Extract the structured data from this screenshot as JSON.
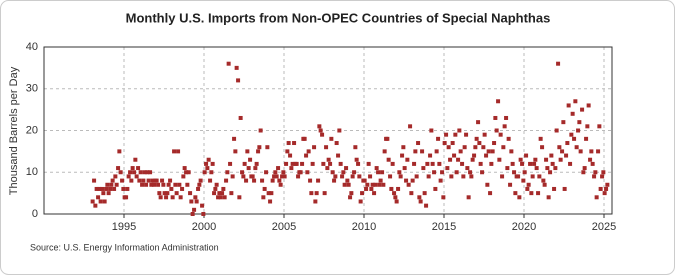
{
  "chart_data": {
    "type": "scatter",
    "title": "Monthly U.S. Imports from Non-OPEC Countries of Special Naphthas",
    "y_label": "Thousand Barrels per Day",
    "source": "Source: U.S. Energy Information Administration",
    "xlim": [
      1990,
      2025.5
    ],
    "xticks": [
      1995,
      2000,
      2005,
      2010,
      2015,
      2020,
      2025
    ],
    "ylim": [
      0,
      40
    ],
    "yticks": [
      0,
      10,
      20,
      30,
      40
    ],
    "grid": true,
    "series": [
      {
        "color": "#a52a2a",
        "x": [
          1993.04,
          1993.13,
          1993.21,
          1993.29,
          1993.38,
          1993.46,
          1993.54,
          1993.63,
          1993.71,
          1993.79,
          1993.88,
          1993.96,
          1994.04,
          1994.13,
          1994.21,
          1994.29,
          1994.38,
          1994.46,
          1994.54,
          1994.63,
          1994.71,
          1994.79,
          1994.88,
          1994.96,
          1995.04,
          1995.13,
          1995.21,
          1995.29,
          1995.38,
          1995.46,
          1995.54,
          1995.63,
          1995.71,
          1995.79,
          1995.88,
          1995.96,
          1996.04,
          1996.13,
          1996.21,
          1996.29,
          1996.38,
          1996.46,
          1996.54,
          1996.63,
          1996.71,
          1996.79,
          1996.88,
          1996.96,
          1997.04,
          1997.13,
          1997.21,
          1997.29,
          1997.38,
          1997.46,
          1997.54,
          1997.63,
          1997.71,
          1997.79,
          1997.88,
          1997.96,
          1998.04,
          1998.13,
          1998.21,
          1998.29,
          1998.38,
          1998.46,
          1998.54,
          1998.63,
          1998.71,
          1998.79,
          1998.88,
          1998.96,
          1999.04,
          1999.13,
          1999.21,
          1999.29,
          1999.38,
          1999.46,
          1999.54,
          1999.63,
          1999.71,
          1999.79,
          1999.88,
          1999.96,
          2000.04,
          2000.13,
          2000.21,
          2000.29,
          2000.38,
          2000.46,
          2000.54,
          2000.63,
          2000.71,
          2000.79,
          2000.88,
          2000.96,
          2001.04,
          2001.13,
          2001.21,
          2001.29,
          2001.38,
          2001.46,
          2001.54,
          2001.63,
          2001.71,
          2001.79,
          2001.88,
          2001.96,
          2002.04,
          2002.13,
          2002.21,
          2002.29,
          2002.38,
          2002.46,
          2002.54,
          2002.63,
          2002.71,
          2002.79,
          2002.88,
          2002.96,
          2003.04,
          2003.13,
          2003.21,
          2003.29,
          2003.38,
          2003.46,
          2003.54,
          2003.63,
          2003.71,
          2003.79,
          2003.88,
          2003.96,
          2004.04,
          2004.13,
          2004.21,
          2004.29,
          2004.38,
          2004.46,
          2004.54,
          2004.63,
          2004.71,
          2004.79,
          2004.88,
          2004.96,
          2005.04,
          2005.13,
          2005.21,
          2005.29,
          2005.38,
          2005.46,
          2005.54,
          2005.63,
          2005.71,
          2005.79,
          2005.88,
          2005.96,
          2006.04,
          2006.13,
          2006.21,
          2006.29,
          2006.38,
          2006.46,
          2006.54,
          2006.63,
          2006.71,
          2006.79,
          2006.88,
          2006.96,
          2007.04,
          2007.13,
          2007.21,
          2007.29,
          2007.38,
          2007.46,
          2007.54,
          2007.63,
          2007.71,
          2007.79,
          2007.88,
          2007.96,
          2008.04,
          2008.13,
          2008.21,
          2008.29,
          2008.38,
          2008.46,
          2008.54,
          2008.63,
          2008.71,
          2008.79,
          2008.88,
          2008.96,
          2009.04,
          2009.13,
          2009.21,
          2009.29,
          2009.38,
          2009.46,
          2009.54,
          2009.63,
          2009.71,
          2009.79,
          2009.88,
          2009.96,
          2010.04,
          2010.13,
          2010.21,
          2010.29,
          2010.38,
          2010.46,
          2010.54,
          2010.63,
          2010.71,
          2010.79,
          2010.88,
          2010.96,
          2011.04,
          2011.13,
          2011.21,
          2011.29,
          2011.38,
          2011.46,
          2011.54,
          2011.63,
          2011.71,
          2011.79,
          2011.88,
          2011.96,
          2012.04,
          2012.13,
          2012.21,
          2012.29,
          2012.38,
          2012.46,
          2012.54,
          2012.63,
          2012.71,
          2012.79,
          2012.88,
          2012.96,
          2013.04,
          2013.13,
          2013.21,
          2013.29,
          2013.38,
          2013.46,
          2013.54,
          2013.63,
          2013.71,
          2013.79,
          2013.88,
          2013.96,
          2014.04,
          2014.13,
          2014.21,
          2014.29,
          2014.38,
          2014.46,
          2014.54,
          2014.63,
          2014.71,
          2014.79,
          2014.88,
          2014.96,
          2015.04,
          2015.13,
          2015.21,
          2015.29,
          2015.38,
          2015.46,
          2015.54,
          2015.63,
          2015.71,
          2015.79,
          2015.88,
          2015.96,
          2016.04,
          2016.13,
          2016.21,
          2016.29,
          2016.38,
          2016.46,
          2016.54,
          2016.63,
          2016.71,
          2016.79,
          2016.88,
          2016.96,
          2017.04,
          2017.13,
          2017.21,
          2017.29,
          2017.38,
          2017.46,
          2017.54,
          2017.63,
          2017.71,
          2017.79,
          2017.88,
          2017.96,
          2018.04,
          2018.13,
          2018.21,
          2018.29,
          2018.38,
          2018.46,
          2018.54,
          2018.63,
          2018.71,
          2018.79,
          2018.88,
          2018.96,
          2019.04,
          2019.13,
          2019.21,
          2019.29,
          2019.38,
          2019.46,
          2019.54,
          2019.63,
          2019.71,
          2019.79,
          2019.88,
          2019.96,
          2020.04,
          2020.13,
          2020.21,
          2020.29,
          2020.38,
          2020.46,
          2020.54,
          2020.63,
          2020.71,
          2020.79,
          2020.88,
          2020.96,
          2021.04,
          2021.13,
          2021.21,
          2021.29,
          2021.38,
          2021.46,
          2021.54,
          2021.63,
          2021.71,
          2021.79,
          2021.88,
          2021.96,
          2022.04,
          2022.13,
          2022.21,
          2022.29,
          2022.38,
          2022.46,
          2022.54,
          2022.63,
          2022.71,
          2022.79,
          2022.88,
          2022.96,
          2023.04,
          2023.13,
          2023.21,
          2023.29,
          2023.38,
          2023.46,
          2023.54,
          2023.63,
          2023.71,
          2023.79,
          2023.88,
          2023.96,
          2024.04,
          2024.13,
          2024.21,
          2024.29,
          2024.38,
          2024.46,
          2024.54,
          2024.63,
          2024.71,
          2024.79,
          2024.88,
          2024.96,
          2025.04,
          2025.13,
          2025.21
        ],
        "values": [
          3,
          8,
          2,
          6,
          4,
          6,
          3,
          6,
          5,
          3,
          6,
          7,
          5,
          6,
          7,
          8,
          6,
          9,
          7,
          11,
          15,
          10,
          8,
          6,
          4,
          4,
          6,
          9,
          10,
          8,
          11,
          10,
          13,
          9,
          11,
          8,
          10,
          7,
          8,
          10,
          7,
          10,
          8,
          10,
          7,
          8,
          7,
          8,
          8,
          7,
          5,
          4,
          8,
          7,
          5,
          4,
          5,
          7,
          8,
          6,
          4,
          15,
          7,
          5,
          15,
          7,
          4,
          6,
          9,
          11,
          10,
          7,
          10,
          5,
          3,
          0,
          1,
          4,
          3,
          6,
          7,
          8,
          2,
          0,
          10,
          12,
          11,
          13,
          8,
          10,
          12,
          5,
          6,
          7,
          4,
          5,
          4,
          5,
          6,
          4,
          8,
          10,
          36,
          12,
          5,
          9,
          18,
          15,
          35,
          32,
          4,
          23,
          10,
          9,
          12,
          8,
          15,
          11,
          13,
          9,
          9,
          8,
          11,
          12,
          15,
          16,
          20,
          8,
          4,
          6,
          10,
          16,
          5,
          3,
          5,
          8,
          9,
          10,
          9,
          11,
          8,
          7,
          9,
          10,
          9,
          12,
          15,
          17,
          14,
          11,
          12,
          17,
          12,
          12,
          9,
          10,
          10,
          12,
          18,
          18,
          14,
          10,
          15,
          8,
          5,
          12,
          16,
          3,
          5,
          8,
          21,
          20,
          19,
          12,
          5,
          16,
          11,
          13,
          12,
          18,
          10,
          8,
          9,
          17,
          14,
          20,
          12,
          9,
          10,
          7,
          11,
          8,
          7,
          4,
          5,
          9,
          10,
          16,
          13,
          12,
          9,
          3,
          5,
          8,
          8,
          6,
          7,
          12,
          9,
          6,
          7,
          5,
          7,
          11,
          10,
          7,
          8,
          10,
          7,
          15,
          18,
          18,
          13,
          9,
          6,
          12,
          5,
          4,
          3,
          6,
          10,
          9,
          14,
          16,
          11,
          8,
          13,
          7,
          21,
          5,
          8,
          12,
          15,
          9,
          17,
          4,
          3,
          15,
          11,
          5,
          2,
          12,
          9,
          14,
          20,
          12,
          10,
          6,
          15,
          18,
          12,
          8,
          10,
          4,
          17,
          19,
          11,
          16,
          13,
          9,
          17,
          14,
          19,
          10,
          13,
          20,
          15,
          12,
          9,
          16,
          19,
          11,
          4,
          10,
          9,
          13,
          14,
          16,
          18,
          22,
          17,
          12,
          10,
          16,
          19,
          14,
          7,
          15,
          5,
          12,
          15,
          17,
          23,
          20,
          27,
          13,
          19,
          9,
          16,
          21,
          23,
          11,
          18,
          7,
          15,
          12,
          10,
          5,
          9,
          9,
          4,
          13,
          12,
          8,
          10,
          14,
          6,
          7,
          12,
          5,
          9,
          12,
          13,
          11,
          5,
          9,
          18,
          16,
          8,
          7,
          13,
          11,
          4,
          10,
          14,
          12,
          6,
          11,
          20,
          36,
          16,
          13,
          15,
          22,
          6,
          14,
          17,
          26,
          12,
          19,
          24,
          18,
          27,
          16,
          20,
          22,
          15,
          25,
          10,
          11,
          18,
          21,
          26,
          13,
          15,
          12,
          9,
          10,
          4,
          15,
          21,
          6,
          9,
          10,
          5,
          6,
          7
        ]
      }
    ]
  }
}
